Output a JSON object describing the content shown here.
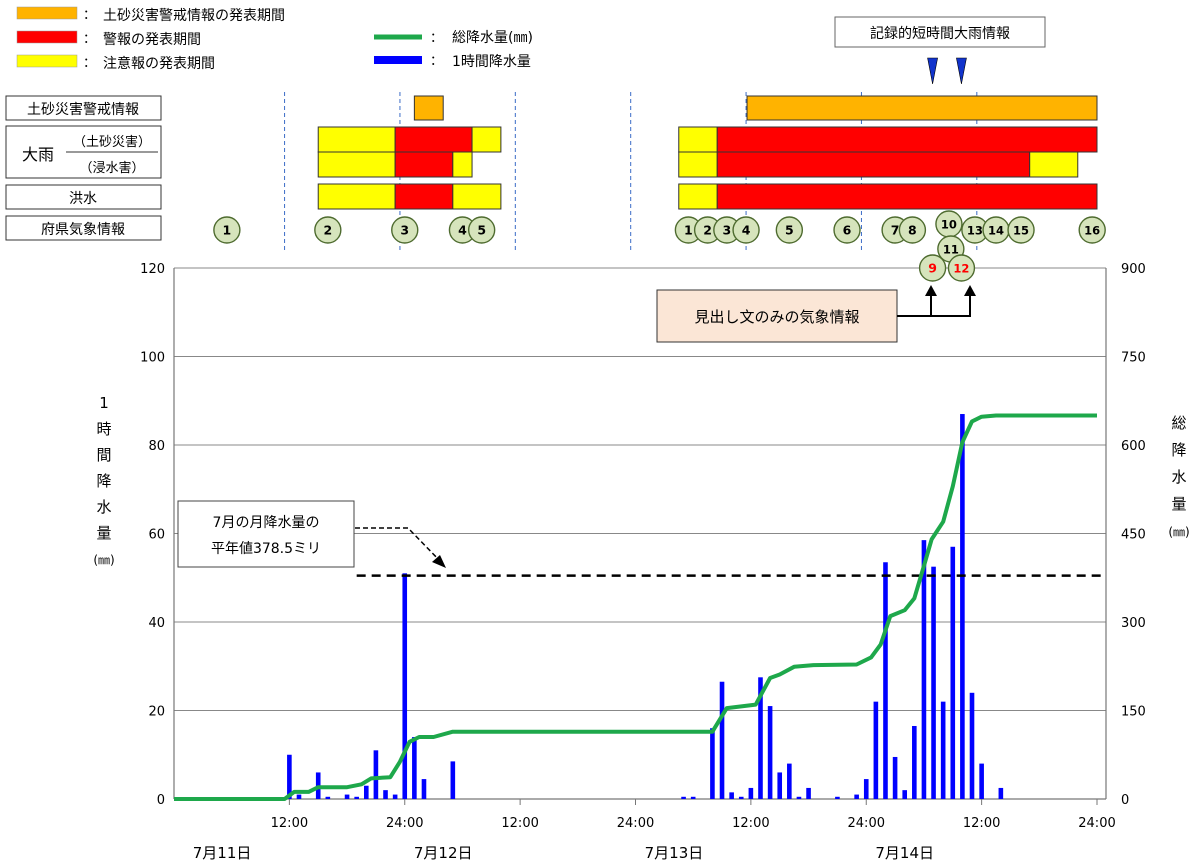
{
  "legend": {
    "left": [
      {
        "label": "土砂災害警戒情報の発表期間",
        "color": "#FFB300"
      },
      {
        "label": "警報の発表期間",
        "color": "#FF0000"
      },
      {
        "label": "注意報の発表期間",
        "color": "#FFFF00"
      }
    ],
    "right": [
      {
        "label": "総降水量(㎜)",
        "color": "#1EA84B",
        "kind": "line"
      },
      {
        "label": "1時間降水量",
        "color": "#0000FF",
        "kind": "bar"
      }
    ],
    "colon": "："
  },
  "record_label": "記録的短時間大雨情報",
  "headline_label": "見出し文のみの気象情報",
  "monthly_note": {
    "line1": "7月の月降水量の",
    "line2": "平年値378.5ミリ",
    "value": 378.5
  },
  "row_labels": {
    "dosha": "土砂災害警戒情報",
    "ooame": "大雨",
    "ooame_sub1": "（土砂災害）",
    "ooame_sub2": "（浸水害）",
    "kozui": "洪水",
    "fuken": "府県気象情報"
  },
  "y_left_label": [
    "1",
    "時",
    "間",
    "降",
    "水",
    "量",
    "(㎜)"
  ],
  "y_right_label": [
    "総",
    "降",
    "水",
    "量",
    "(㎜)"
  ],
  "x_ticks": [
    "12:00",
    "24:00",
    "12:00",
    "24:00",
    "12:00",
    "24:00",
    "12:00",
    "24:00"
  ],
  "date_labels": [
    "7月11日",
    "7月12日",
    "7月13日",
    "7月14日"
  ],
  "y_left_ticks": [
    "0",
    "20",
    "40",
    "60",
    "80",
    "100",
    "120"
  ],
  "y_right_ticks": [
    "0",
    "150",
    "300",
    "450",
    "600",
    "750",
    "900"
  ],
  "chart_data": {
    "type": "bar",
    "xlabel": "",
    "ylabel": "1時間降水量(㎜)",
    "y2label": "総降水量(㎜)",
    "x_range_hours": [
      0,
      96
    ],
    "ylim": [
      0,
      120
    ],
    "y2lim": [
      0,
      900
    ],
    "x_ticks_hours": [
      12,
      24,
      36,
      48,
      60,
      72,
      84,
      96
    ],
    "grid": true,
    "hourly": [
      {
        "t": 12,
        "v": 10
      },
      {
        "t": 13,
        "v": 1
      },
      {
        "t": 15,
        "v": 6
      },
      {
        "t": 16,
        "v": 0.5
      },
      {
        "t": 18,
        "v": 1
      },
      {
        "t": 19,
        "v": 0.5
      },
      {
        "t": 20,
        "v": 3
      },
      {
        "t": 21,
        "v": 11
      },
      {
        "t": 22,
        "v": 2
      },
      {
        "t": 23,
        "v": 1
      },
      {
        "t": 24,
        "v": 51
      },
      {
        "t": 25,
        "v": 14
      },
      {
        "t": 26,
        "v": 4.5
      },
      {
        "t": 29,
        "v": 8.5
      },
      {
        "t": 53,
        "v": 0.5
      },
      {
        "t": 54,
        "v": 0.5
      },
      {
        "t": 56,
        "v": 16
      },
      {
        "t": 57,
        "v": 26.5
      },
      {
        "t": 58,
        "v": 1.5
      },
      {
        "t": 59,
        "v": 0.5
      },
      {
        "t": 60,
        "v": 2.5
      },
      {
        "t": 61,
        "v": 27.5
      },
      {
        "t": 62,
        "v": 21
      },
      {
        "t": 63,
        "v": 6
      },
      {
        "t": 64,
        "v": 8
      },
      {
        "t": 65,
        "v": 0.5
      },
      {
        "t": 66,
        "v": 2.5
      },
      {
        "t": 69,
        "v": 0.5
      },
      {
        "t": 71,
        "v": 1
      },
      {
        "t": 72,
        "v": 4.5
      },
      {
        "t": 73,
        "v": 22
      },
      {
        "t": 74,
        "v": 53.5
      },
      {
        "t": 75,
        "v": 9.5
      },
      {
        "t": 76,
        "v": 2
      },
      {
        "t": 77,
        "v": 16.5
      },
      {
        "t": 78,
        "v": 58.5
      },
      {
        "t": 79,
        "v": 52.5
      },
      {
        "t": 80,
        "v": 22
      },
      {
        "t": 81,
        "v": 57
      },
      {
        "t": 82,
        "v": 87
      },
      {
        "t": 83,
        "v": 24
      },
      {
        "t": 84,
        "v": 8
      },
      {
        "t": 86,
        "v": 2.5
      }
    ],
    "total": [
      {
        "t": 0,
        "v": 0
      },
      {
        "t": 11.5,
        "v": 0
      },
      {
        "t": 12.5,
        "v": 12
      },
      {
        "t": 14,
        "v": 12
      },
      {
        "t": 15,
        "v": 20
      },
      {
        "t": 18,
        "v": 20
      },
      {
        "t": 19.5,
        "v": 25
      },
      {
        "t": 20.5,
        "v": 35
      },
      {
        "t": 22.5,
        "v": 37
      },
      {
        "t": 23.5,
        "v": 63
      },
      {
        "t": 24.5,
        "v": 97
      },
      {
        "t": 25.5,
        "v": 105
      },
      {
        "t": 27,
        "v": 105
      },
      {
        "t": 29,
        "v": 114
      },
      {
        "t": 56,
        "v": 114
      },
      {
        "t": 57.5,
        "v": 154
      },
      {
        "t": 59,
        "v": 157
      },
      {
        "t": 60.5,
        "v": 160
      },
      {
        "t": 62,
        "v": 205
      },
      {
        "t": 63,
        "v": 211
      },
      {
        "t": 64.5,
        "v": 224
      },
      {
        "t": 66.5,
        "v": 227
      },
      {
        "t": 71,
        "v": 228
      },
      {
        "t": 72.5,
        "v": 240
      },
      {
        "t": 73.5,
        "v": 262
      },
      {
        "t": 74.5,
        "v": 310
      },
      {
        "t": 76,
        "v": 320
      },
      {
        "t": 77,
        "v": 340
      },
      {
        "t": 78,
        "v": 395
      },
      {
        "t": 78.8,
        "v": 440
      },
      {
        "t": 80,
        "v": 470
      },
      {
        "t": 81,
        "v": 530
      },
      {
        "t": 82,
        "v": 605
      },
      {
        "t": 83,
        "v": 640
      },
      {
        "t": 84,
        "v": 648
      },
      {
        "t": 85.5,
        "v": 650
      },
      {
        "t": 96,
        "v": 650
      }
    ],
    "monthly_normal_total": 378.5,
    "monthly_normal_from_hours": 19,
    "warnings": {
      "dosha": [
        {
          "from": 25,
          "to": 28,
          "level": "dosha"
        },
        {
          "from": 59.6,
          "to": 96,
          "level": "dosha"
        }
      ],
      "ooame_dosha": [
        {
          "from": 15,
          "to": 23,
          "level": "chuiho"
        },
        {
          "from": 23,
          "to": 31,
          "level": "keiho"
        },
        {
          "from": 31,
          "to": 34,
          "level": "chuiho"
        },
        {
          "from": 52.5,
          "to": 56.5,
          "level": "chuiho"
        },
        {
          "from": 56.5,
          "to": 96,
          "level": "keiho"
        }
      ],
      "ooame_shinsui": [
        {
          "from": 15,
          "to": 23,
          "level": "chuiho"
        },
        {
          "from": 23,
          "to": 29,
          "level": "keiho"
        },
        {
          "from": 29,
          "to": 31,
          "level": "chuiho"
        },
        {
          "from": 52.5,
          "to": 56.5,
          "level": "chuiho"
        },
        {
          "from": 56.5,
          "to": 89,
          "level": "keiho"
        },
        {
          "from": 89,
          "to": 94,
          "level": "chuiho"
        }
      ],
      "kozui": [
        {
          "from": 15,
          "to": 23,
          "level": "chuiho"
        },
        {
          "from": 23,
          "to": 29,
          "level": "keiho"
        },
        {
          "from": 29,
          "to": 34,
          "level": "chuiho"
        },
        {
          "from": 52.5,
          "to": 56.5,
          "level": "chuiho"
        },
        {
          "from": 56.5,
          "to": 96,
          "level": "keiho"
        }
      ]
    },
    "info_circles": [
      {
        "label": "1",
        "t": 5.5,
        "row": 0
      },
      {
        "label": "2",
        "t": 16,
        "row": 0
      },
      {
        "label": "3",
        "t": 24,
        "row": 0
      },
      {
        "label": "4",
        "t": 30,
        "row": 0
      },
      {
        "label": "5",
        "t": 32,
        "row": 0
      },
      {
        "label": "1",
        "t": 53.5,
        "row": 0
      },
      {
        "label": "2",
        "t": 55.5,
        "row": 0
      },
      {
        "label": "3",
        "t": 57.5,
        "row": 0
      },
      {
        "label": "4",
        "t": 59.5,
        "row": 0
      },
      {
        "label": "5",
        "t": 64,
        "row": 0
      },
      {
        "label": "6",
        "t": 70,
        "row": 0
      },
      {
        "label": "7",
        "t": 75,
        "row": 0
      },
      {
        "label": "8",
        "t": 76.8,
        "row": 0
      },
      {
        "label": "10",
        "t": 80.6,
        "row": -1
      },
      {
        "label": "11",
        "t": 80.8,
        "row": 1
      },
      {
        "label": "13",
        "t": 83.3,
        "row": 0
      },
      {
        "label": "14",
        "t": 85.5,
        "row": 0
      },
      {
        "label": "15",
        "t": 88.1,
        "row": 0
      },
      {
        "label": "16",
        "t": 95.5,
        "row": 0
      },
      {
        "label": "9",
        "t": 78.9,
        "row": 2,
        "headline": true
      },
      {
        "label": "12",
        "t": 81.9,
        "row": 2,
        "headline": true
      }
    ],
    "record_markers_hours": [
      78.9,
      81.9
    ],
    "dashed_dividers_hours": [
      11.5,
      23.5,
      35.5,
      47.5,
      59.5,
      71.5,
      83.5
    ]
  },
  "colors": {
    "chuiho": "#FFFF00",
    "keiho": "#FF0000",
    "dosha": "#FFB300",
    "bar": "#0000FF",
    "total_line": "#1EA84B",
    "circle_fill": "#D6E4BC",
    "circle_stroke": "#4E6B2F",
    "headline_text": "#FF0000",
    "callout_fill": "#FBE6D6",
    "marker": "#1133CC"
  }
}
